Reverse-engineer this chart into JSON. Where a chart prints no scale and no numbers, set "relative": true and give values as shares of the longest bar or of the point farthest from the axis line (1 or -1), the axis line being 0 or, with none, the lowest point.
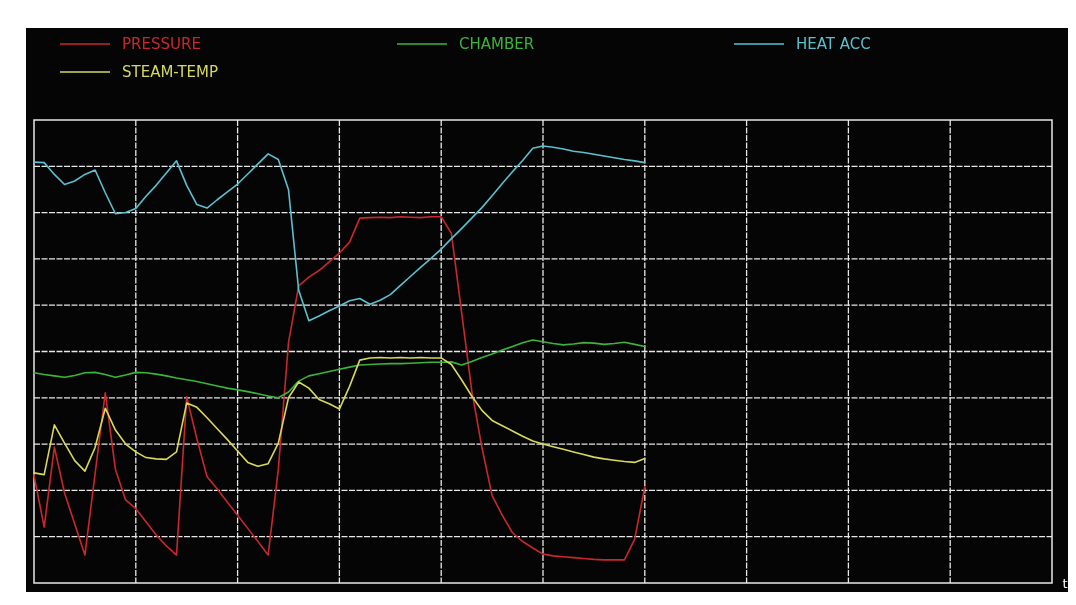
{
  "chart_data": {
    "type": "line",
    "relative": true,
    "xlabel": "t",
    "grid": true,
    "legend": "top",
    "categories": [
      null,
      null,
      null,
      null,
      null,
      null,
      null,
      null,
      null,
      null,
      null,
      null,
      null,
      null,
      null,
      null,
      null,
      null,
      null,
      null,
      null,
      null,
      null,
      null,
      null,
      null,
      null,
      null,
      null,
      null,
      null,
      null,
      null,
      null,
      null,
      null,
      null,
      null,
      null,
      null,
      null,
      null,
      null,
      null,
      null,
      null,
      null,
      null,
      null,
      null,
      null,
      null,
      null,
      null,
      null,
      null,
      null,
      null,
      null,
      null,
      null,
      null,
      null,
      null,
      null,
      null,
      null,
      null,
      null,
      null,
      null,
      null,
      null,
      null,
      null,
      null,
      null,
      null,
      null,
      null,
      null,
      null,
      null,
      null,
      null,
      null,
      null,
      null,
      null,
      null,
      null,
      null,
      null,
      null,
      null,
      null,
      null,
      null,
      null,
      null,
      null
    ],
    "series": [
      {
        "name": "PRESSURE",
        "color": "#c8282d",
        "values": [
          0.247,
          0.128,
          0.311,
          0.206,
          0.135,
          0.064,
          0.25,
          0.435,
          0.26,
          0.19,
          0.17,
          0.14,
          0.11,
          0.085,
          0.064,
          0.426,
          0.33,
          0.243,
          0.215,
          0.185,
          0.155,
          0.125,
          0.095,
          0.064,
          0.26,
          0.55,
          0.68,
          0.7,
          0.715,
          0.735,
          0.755,
          0.78,
          0.835,
          0.836,
          0.837,
          0.836,
          0.838,
          0.837,
          0.836,
          0.838,
          0.838,
          0.8,
          0.62,
          0.44,
          0.31,
          0.2,
          0.155,
          0.115,
          0.095,
          0.08,
          0.066,
          0.062,
          0.06,
          0.058,
          0.056,
          0.054,
          0.053,
          0.053,
          0.053,
          0.1,
          0.22,
          null,
          null,
          null,
          null,
          null,
          null,
          null,
          null,
          null,
          null,
          null,
          null,
          null,
          null,
          null,
          null,
          null,
          null,
          null,
          null,
          null,
          null,
          null,
          null,
          null,
          null,
          null,
          null,
          null,
          null,
          null,
          null,
          null,
          null,
          null,
          null,
          null,
          null,
          null,
          null
        ]
      },
      {
        "name": "CHAMBER",
        "color": "#3cb43c",
        "values": [
          0.481,
          0.477,
          0.474,
          0.471,
          0.475,
          0.481,
          0.482,
          0.477,
          0.471,
          0.476,
          0.482,
          0.481,
          0.478,
          0.474,
          0.469,
          0.465,
          0.461,
          0.456,
          0.451,
          0.446,
          0.442,
          0.438,
          0.433,
          0.428,
          0.424,
          0.437,
          0.462,
          0.474,
          0.479,
          0.484,
          0.489,
          0.494,
          0.499,
          0.5,
          0.501,
          0.502,
          0.502,
          0.503,
          0.504,
          0.505,
          0.505,
          0.506,
          0.499,
          0.507,
          0.516,
          0.524,
          0.533,
          0.541,
          0.55,
          0.556,
          0.552,
          0.548,
          0.545,
          0.547,
          0.55,
          0.549,
          0.546,
          0.548,
          0.551,
          0.546,
          0.541,
          null,
          null,
          null,
          null,
          null,
          null,
          null,
          null,
          null,
          null,
          null,
          null,
          null,
          null,
          null,
          null,
          null,
          null,
          null,
          null,
          null,
          null,
          null,
          null,
          null,
          null,
          null,
          null,
          null,
          null,
          null,
          null,
          null,
          null,
          null,
          null,
          null,
          null,
          null,
          null
        ]
      },
      {
        "name": "HEAT ACC",
        "color": "#5bc0cf",
        "values": [
          0.963,
          0.962,
          0.935,
          0.912,
          0.92,
          0.935,
          0.945,
          0.893,
          0.845,
          0.848,
          0.857,
          0.885,
          0.91,
          0.938,
          0.966,
          0.91,
          0.866,
          0.858,
          0.877,
          0.895,
          0.913,
          0.936,
          0.959,
          0.982,
          0.969,
          0.9,
          0.67,
          0.6,
          0.611,
          0.623,
          0.634,
          0.646,
          0.651,
          0.638,
          0.647,
          0.66,
          0.681,
          0.702,
          0.723,
          0.743,
          0.764,
          0.788,
          0.811,
          0.835,
          0.859,
          0.886,
          0.914,
          0.941,
          0.967,
          0.995,
          1,
          0.997,
          0.993,
          0.988,
          0.985,
          0.981,
          0.977,
          0.973,
          0.969,
          0.966,
          0.962,
          null,
          null,
          null,
          null,
          null,
          null,
          null,
          null,
          null,
          null,
          null,
          null,
          null,
          null,
          null,
          null,
          null,
          null,
          null,
          null,
          null,
          null,
          null,
          null,
          null,
          null,
          null,
          null,
          null,
          null,
          null,
          null,
          null,
          null,
          null,
          null,
          null,
          null,
          null,
          null
        ]
      },
      {
        "name": "STEAM-TEMP",
        "color": "#d8d85a",
        "values": [
          0.252,
          0.248,
          0.362,
          0.32,
          0.28,
          0.256,
          0.31,
          0.4,
          0.35,
          0.318,
          0.3,
          0.287,
          0.284,
          0.283,
          0.3,
          0.412,
          0.402,
          0.378,
          0.353,
          0.328,
          0.302,
          0.276,
          0.267,
          0.273,
          0.32,
          0.424,
          0.46,
          0.446,
          0.42,
          0.41,
          0.398,
          0.45,
          0.51,
          0.515,
          0.516,
          0.515,
          0.516,
          0.515,
          0.516,
          0.515,
          0.515,
          0.5,
          0.465,
          0.428,
          0.395,
          0.372,
          0.36,
          0.348,
          0.336,
          0.325,
          0.318,
          0.312,
          0.306,
          0.3,
          0.294,
          0.288,
          0.284,
          0.281,
          0.278,
          0.276,
          0.285,
          null,
          null,
          null,
          null,
          null,
          null,
          null,
          null,
          null,
          null,
          null,
          null,
          null,
          null,
          null,
          null,
          null,
          null,
          null,
          null,
          null,
          null,
          null,
          null,
          null,
          null,
          null,
          null,
          null,
          null,
          null,
          null,
          null,
          null,
          null,
          null,
          null,
          null,
          null,
          null
        ]
      }
    ]
  }
}
